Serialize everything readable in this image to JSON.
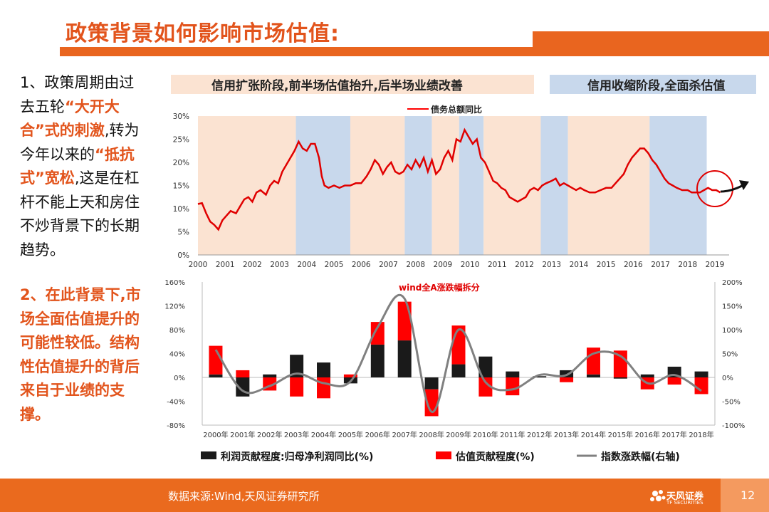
{
  "slide": {
    "title": "政策背景如何影响市场估值:",
    "page_number": "12",
    "source": "数据来源:Wind,天风证券研究所",
    "logo_text": "天风证券",
    "logo_sub": "TF SECURITIES"
  },
  "left_text": {
    "p1_a": "1、政策周期由过去五轮",
    "p1_hl1": "“大开大合”式的刺激",
    "p1_b": ",转为今年以来的",
    "p1_hl2": "“抵抗式”宽松",
    "p1_c": ",这是在杠杆不能上天和房住不炒背景下的长期趋势。",
    "p2": "2、在此背景下,市场全面估值提升的可能性较低。结构性估值提升的背后来自于业绩的支撑。"
  },
  "colors": {
    "accent": "#e9651f",
    "expand_band": "#fbe3d2",
    "contract_band": "#c8d8ec",
    "red": "#ff0000",
    "black": "#1a1a1a",
    "gray": "#808080"
  },
  "chart_data": [
    {
      "type": "line",
      "legend_top": {
        "expand_label": "信用扩张阶段,前半场估值抬升,后半场业绩改善",
        "contract_label": "信用收缩阶段,全面杀估值"
      },
      "series": [
        {
          "name": "债务总额同比",
          "points": [
            [
              2000.0,
              11.0
            ],
            [
              2000.15,
              11.2
            ],
            [
              2000.3,
              9.0
            ],
            [
              2000.45,
              7.2
            ],
            [
              2000.6,
              6.5
            ],
            [
              2000.75,
              5.5
            ],
            [
              2000.9,
              7.5
            ],
            [
              2001.05,
              8.5
            ],
            [
              2001.2,
              9.5
            ],
            [
              2001.4,
              9.0
            ],
            [
              2001.55,
              10.5
            ],
            [
              2001.7,
              12.0
            ],
            [
              2001.85,
              12.5
            ],
            [
              2002.0,
              11.5
            ],
            [
              2002.15,
              13.5
            ],
            [
              2002.3,
              14.0
            ],
            [
              2002.5,
              13.0
            ],
            [
              2002.65,
              15.0
            ],
            [
              2002.8,
              16.0
            ],
            [
              2002.95,
              15.5
            ],
            [
              2003.1,
              18.0
            ],
            [
              2003.25,
              19.5
            ],
            [
              2003.4,
              21.0
            ],
            [
              2003.55,
              22.5
            ],
            [
              2003.7,
              24.5
            ],
            [
              2003.85,
              23.0
            ],
            [
              2004.0,
              22.5
            ],
            [
              2004.15,
              24.0
            ],
            [
              2004.3,
              24.0
            ],
            [
              2004.45,
              21.0
            ],
            [
              2004.55,
              17.0
            ],
            [
              2004.65,
              15.0
            ],
            [
              2004.8,
              14.5
            ],
            [
              2005.0,
              15.0
            ],
            [
              2005.2,
              14.5
            ],
            [
              2005.4,
              15.0
            ],
            [
              2005.6,
              15.0
            ],
            [
              2005.8,
              15.5
            ],
            [
              2006.0,
              15.5
            ],
            [
              2006.2,
              17.0
            ],
            [
              2006.35,
              18.5
            ],
            [
              2006.5,
              20.5
            ],
            [
              2006.65,
              19.5
            ],
            [
              2006.8,
              17.5
            ],
            [
              2006.95,
              19.0
            ],
            [
              2007.1,
              20.0
            ],
            [
              2007.25,
              18.0
            ],
            [
              2007.4,
              17.5
            ],
            [
              2007.55,
              18.0
            ],
            [
              2007.7,
              19.5
            ],
            [
              2007.85,
              18.5
            ],
            [
              2008.0,
              20.5
            ],
            [
              2008.15,
              19.0
            ],
            [
              2008.3,
              21.0
            ],
            [
              2008.45,
              18.0
            ],
            [
              2008.6,
              20.5
            ],
            [
              2008.75,
              17.5
            ],
            [
              2008.9,
              18.5
            ],
            [
              2009.05,
              21.0
            ],
            [
              2009.2,
              22.5
            ],
            [
              2009.35,
              20.5
            ],
            [
              2009.5,
              25.0
            ],
            [
              2009.65,
              24.5
            ],
            [
              2009.8,
              27.0
            ],
            [
              2009.95,
              25.5
            ],
            [
              2010.1,
              24.0
            ],
            [
              2010.25,
              25.0
            ],
            [
              2010.4,
              21.0
            ],
            [
              2010.55,
              20.0
            ],
            [
              2010.7,
              18.0
            ],
            [
              2010.85,
              16.0
            ],
            [
              2011.0,
              15.5
            ],
            [
              2011.15,
              14.5
            ],
            [
              2011.3,
              14.0
            ],
            [
              2011.45,
              12.5
            ],
            [
              2011.6,
              12.0
            ],
            [
              2011.75,
              11.5
            ],
            [
              2011.9,
              12.0
            ],
            [
              2012.05,
              12.5
            ],
            [
              2012.2,
              14.0
            ],
            [
              2012.35,
              14.5
            ],
            [
              2012.5,
              14.0
            ],
            [
              2012.65,
              15.0
            ],
            [
              2012.8,
              15.5
            ],
            [
              2013.0,
              16.0
            ],
            [
              2013.15,
              16.5
            ],
            [
              2013.3,
              15.0
            ],
            [
              2013.45,
              15.5
            ],
            [
              2013.6,
              15.0
            ],
            [
              2013.75,
              14.5
            ],
            [
              2013.9,
              14.0
            ],
            [
              2014.05,
              14.5
            ],
            [
              2014.2,
              14.0
            ],
            [
              2014.4,
              13.5
            ],
            [
              2014.6,
              13.5
            ],
            [
              2014.8,
              14.0
            ],
            [
              2015.0,
              14.5
            ],
            [
              2015.2,
              14.5
            ],
            [
              2015.35,
              15.5
            ],
            [
              2015.5,
              16.5
            ],
            [
              2015.65,
              17.5
            ],
            [
              2015.8,
              19.5
            ],
            [
              2015.95,
              21.0
            ],
            [
              2016.1,
              22.0
            ],
            [
              2016.25,
              23.0
            ],
            [
              2016.4,
              23.0
            ],
            [
              2016.55,
              22.0
            ],
            [
              2016.7,
              20.5
            ],
            [
              2016.85,
              19.5
            ],
            [
              2017.0,
              18.0
            ],
            [
              2017.15,
              16.5
            ],
            [
              2017.3,
              15.5
            ],
            [
              2017.45,
              15.0
            ],
            [
              2017.6,
              14.5
            ],
            [
              2017.8,
              14.0
            ],
            [
              2018.0,
              14.0
            ],
            [
              2018.15,
              13.5
            ],
            [
              2018.3,
              13.5
            ],
            [
              2018.45,
              13.5
            ],
            [
              2018.6,
              14.0
            ],
            [
              2018.75,
              14.5
            ],
            [
              2018.9,
              14.0
            ],
            [
              2019.05,
              14.0
            ],
            [
              2019.2,
              13.5
            ]
          ]
        }
      ],
      "xlim": [
        2000,
        2019
      ],
      "x_ticks": [
        "2000",
        "2001",
        "2002",
        "2003",
        "2004",
        "2005",
        "2006",
        "2007",
        "2008",
        "2009",
        "2010",
        "2011",
        "2012",
        "2013",
        "2014",
        "2015",
        "2016",
        "2017",
        "2018",
        "2019"
      ],
      "ylim": [
        0,
        30
      ],
      "y_ticks": [
        "0%",
        "5%",
        "10%",
        "15%",
        "20%",
        "25%",
        "30%"
      ],
      "bands": [
        {
          "type": "expand",
          "from": 2000,
          "to": 2003.6
        },
        {
          "type": "contract",
          "from": 2003.6,
          "to": 2005.6
        },
        {
          "type": "expand",
          "from": 2005.6,
          "to": 2007.6
        },
        {
          "type": "contract",
          "from": 2007.6,
          "to": 2008.6
        },
        {
          "type": "expand",
          "from": 2008.6,
          "to": 2009.6
        },
        {
          "type": "contract",
          "from": 2009.6,
          "to": 2010.5
        },
        {
          "type": "expand",
          "from": 2010.5,
          "to": 2012.6
        },
        {
          "type": "contract",
          "from": 2012.6,
          "to": 2013.6
        },
        {
          "type": "expand",
          "from": 2013.6,
          "to": 2016.6
        },
        {
          "type": "contract",
          "from": 2016.6,
          "to": 2018.7
        }
      ],
      "highlight": {
        "x": 2019.0,
        "y": 14.0
      }
    },
    {
      "type": "bar",
      "title": "wind全A涨跌幅拆分",
      "categories": [
        "2000年",
        "2001年",
        "2002年",
        "2003年",
        "2004年",
        "2005年",
        "2006年",
        "2007年",
        "2008年",
        "2009年",
        "2010年",
        "2011年",
        "2012年",
        "2013年",
        "2014年",
        "2015年",
        "2016年",
        "2017年",
        "2018年"
      ],
      "series": [
        {
          "name": "利润贡献程度:归母净利润同比(%)",
          "values": [
            5,
            -32,
            5,
            38,
            25,
            -10,
            55,
            62,
            -20,
            22,
            35,
            10,
            2,
            12,
            5,
            -2,
            5,
            18,
            10
          ]
        },
        {
          "name": "估值贡献程度(%)",
          "values": [
            48,
            12,
            -22,
            -32,
            -35,
            5,
            38,
            65,
            -45,
            65,
            -32,
            -30,
            0,
            -8,
            45,
            45,
            -20,
            -12,
            -28
          ]
        },
        {
          "name": "指数涨跌幅(右轴)",
          "axis": "right",
          "values": [
            58,
            -28,
            -18,
            8,
            -12,
            -8,
            105,
            165,
            -72,
            100,
            -10,
            -25,
            5,
            5,
            50,
            45,
            -12,
            5,
            -28
          ]
        }
      ],
      "ylim_left": [
        -80,
        160
      ],
      "y_ticks_left": [
        "-80%",
        "-40%",
        "0%",
        "40%",
        "80%",
        "120%",
        "160%"
      ],
      "ylim_right": [
        -100,
        200
      ],
      "y_ticks_right": [
        "-100%",
        "-50%",
        "0%",
        "50%",
        "100%",
        "150%",
        "200%"
      ],
      "legend": "bottom"
    }
  ]
}
